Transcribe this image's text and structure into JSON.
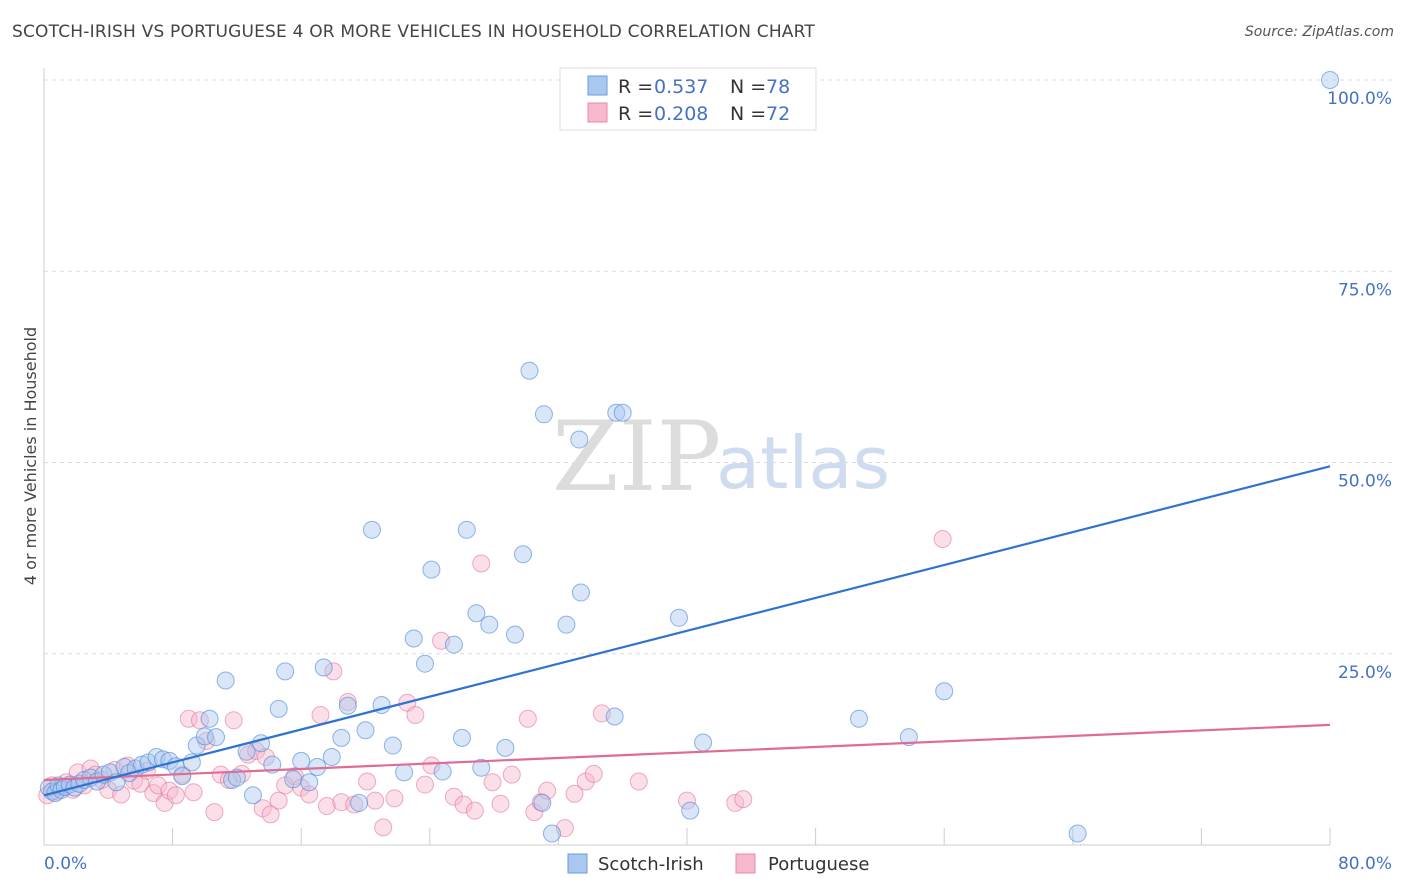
{
  "header": {
    "title": "SCOTCH-IRISH VS PORTUGUESE 4 OR MORE VEHICLES IN HOUSEHOLD CORRELATION CHART",
    "source": "Source: ZipAtlas.com"
  },
  "watermark": {
    "zip": "ZIP",
    "atlas": "atlas"
  },
  "legend": {
    "rows": [
      {
        "r_label": "R =",
        "r_value": "0.537",
        "n_label": "N =",
        "n_value": "78",
        "color": "#a9c8f0"
      },
      {
        "r_label": "R =",
        "r_value": "0.208",
        "n_label": "N =",
        "n_value": "72",
        "color": "#f7b8cc"
      }
    ]
  },
  "bottom_legend": {
    "series1": "Scotch-Irish",
    "series2": "Portuguese"
  },
  "chart_data": {
    "type": "scatter",
    "title": "SCOTCH-IRISH VS PORTUGUESE 4 OR MORE VEHICLES IN HOUSEHOLD CORRELATION CHART",
    "xlabel": "",
    "ylabel": "4 or more Vehicles in Household",
    "xlim": [
      0,
      80
    ],
    "ylim": [
      0,
      100
    ],
    "x_tick_labels": [
      "0.0%",
      "80.0%"
    ],
    "y_ticks": [
      25,
      50,
      75,
      100
    ],
    "y_tick_labels": [
      "25.0%",
      "50.0%",
      "75.0%",
      "100.0%"
    ],
    "grid": true,
    "legend_position": "top-center",
    "series": [
      {
        "name": "Scotch-Irish",
        "color": "#4a86d8",
        "fill": "#a9c8f0",
        "r": 0.537,
        "n": 78,
        "trend": {
          "x": [
            0,
            80
          ],
          "y": [
            6.5,
            49.5
          ]
        },
        "points": [
          [
            0.3,
            7.5
          ],
          [
            0.5,
            7.0
          ],
          [
            0.7,
            6.8
          ],
          [
            0.9,
            7.8
          ],
          [
            1.1,
            7.2
          ],
          [
            1.3,
            7.6
          ],
          [
            1.6,
            7.9
          ],
          [
            1.9,
            7.5
          ],
          [
            2.2,
            8.0
          ],
          [
            2.5,
            8.5
          ],
          [
            2.9,
            8.8
          ],
          [
            3.3,
            8.3
          ],
          [
            3.7,
            9.2
          ],
          [
            4.1,
            9.5
          ],
          [
            4.5,
            8.2
          ],
          [
            5.0,
            10.2
          ],
          [
            5.3,
            9.4
          ],
          [
            5.7,
            10.0
          ],
          [
            6.1,
            10.5
          ],
          [
            6.5,
            10.8
          ],
          [
            7.0,
            11.5
          ],
          [
            7.4,
            11.2
          ],
          [
            7.8,
            11.0
          ],
          [
            8.2,
            10.3
          ],
          [
            8.6,
            9.0
          ],
          [
            9.2,
            10.8
          ],
          [
            9.5,
            13.0
          ],
          [
            10.0,
            14.2
          ],
          [
            10.3,
            16.5
          ],
          [
            10.7,
            14.1
          ],
          [
            11.3,
            21.5
          ],
          [
            11.7,
            8.5
          ],
          [
            12.0,
            8.8
          ],
          [
            12.6,
            12.2
          ],
          [
            13.0,
            6.5
          ],
          [
            13.5,
            13.3
          ],
          [
            14.2,
            10.5
          ],
          [
            14.6,
            17.8
          ],
          [
            15.0,
            22.7
          ],
          [
            15.5,
            8.6
          ],
          [
            16.0,
            11.0
          ],
          [
            16.5,
            8.2
          ],
          [
            17.0,
            10.2
          ],
          [
            17.4,
            23.2
          ],
          [
            17.9,
            11.5
          ],
          [
            18.5,
            14.0
          ],
          [
            18.9,
            18.2
          ],
          [
            19.6,
            5.5
          ],
          [
            20.0,
            15.0
          ],
          [
            20.4,
            41.2
          ],
          [
            21.0,
            18.3
          ],
          [
            21.7,
            13.0
          ],
          [
            22.4,
            9.5
          ],
          [
            23.0,
            27.0
          ],
          [
            23.7,
            23.7
          ],
          [
            24.1,
            36.0
          ],
          [
            24.8,
            9.6
          ],
          [
            25.5,
            26.2
          ],
          [
            26.0,
            14.0
          ],
          [
            26.3,
            41.2
          ],
          [
            26.9,
            30.3
          ],
          [
            27.2,
            10.1
          ],
          [
            27.7,
            28.8
          ],
          [
            28.7,
            12.7
          ],
          [
            29.3,
            27.5
          ],
          [
            29.8,
            38.0
          ],
          [
            30.2,
            62.0
          ],
          [
            31.0,
            5.5
          ],
          [
            31.1,
            56.3
          ],
          [
            31.6,
            1.5
          ],
          [
            32.5,
            28.8
          ],
          [
            33.3,
            53.0
          ],
          [
            33.4,
            33.0
          ],
          [
            35.6,
            56.5
          ],
          [
            35.5,
            16.8
          ],
          [
            36.0,
            56.5
          ],
          [
            39.5,
            29.7
          ],
          [
            40.2,
            4.5
          ],
          [
            41.0,
            13.4
          ],
          [
            50.7,
            16.5
          ],
          [
            53.8,
            14.1
          ],
          [
            56.0,
            20.1
          ],
          [
            64.3,
            1.5
          ],
          [
            80.0,
            100.0
          ]
        ]
      },
      {
        "name": "Portuguese",
        "color": "#e06c96",
        "fill": "#f7b8cc",
        "r": 0.208,
        "n": 72,
        "trend": {
          "x": [
            0,
            80
          ],
          "y": [
            8.5,
            15.7
          ]
        },
        "points": [
          [
            0.2,
            6.5
          ],
          [
            0.5,
            7.8
          ],
          [
            0.8,
            7.0
          ],
          [
            1.1,
            7.5
          ],
          [
            1.4,
            8.2
          ],
          [
            1.8,
            7.2
          ],
          [
            2.1,
            9.5
          ],
          [
            2.5,
            7.8
          ],
          [
            2.9,
            10.0
          ],
          [
            3.2,
            9.2
          ],
          [
            3.6,
            8.5
          ],
          [
            4.0,
            7.2
          ],
          [
            4.4,
            9.8
          ],
          [
            4.8,
            6.6
          ],
          [
            5.2,
            10.4
          ],
          [
            5.6,
            8.4
          ],
          [
            6.0,
            8.0
          ],
          [
            6.4,
            9.7
          ],
          [
            6.8,
            6.8
          ],
          [
            7.1,
            7.8
          ],
          [
            7.5,
            5.5
          ],
          [
            7.8,
            7.1
          ],
          [
            8.2,
            6.5
          ],
          [
            8.6,
            9.2
          ],
          [
            9.0,
            16.5
          ],
          [
            9.3,
            6.9
          ],
          [
            9.7,
            16.3
          ],
          [
            10.1,
            13.6
          ],
          [
            10.6,
            4.3
          ],
          [
            11.0,
            9.2
          ],
          [
            11.5,
            8.5
          ],
          [
            11.8,
            16.3
          ],
          [
            12.3,
            9.3
          ],
          [
            12.7,
            11.8
          ],
          [
            13.2,
            12.3
          ],
          [
            13.6,
            4.8
          ],
          [
            13.8,
            11.5
          ],
          [
            14.1,
            4.0
          ],
          [
            14.6,
            5.8
          ],
          [
            15.0,
            7.8
          ],
          [
            15.6,
            9.0
          ],
          [
            16.0,
            7.5
          ],
          [
            16.5,
            6.6
          ],
          [
            17.2,
            17.0
          ],
          [
            17.6,
            5.1
          ],
          [
            18.0,
            22.7
          ],
          [
            18.5,
            5.6
          ],
          [
            18.9,
            18.7
          ],
          [
            19.3,
            5.3
          ],
          [
            20.1,
            8.3
          ],
          [
            20.6,
            5.8
          ],
          [
            21.1,
            2.3
          ],
          [
            21.8,
            6.1
          ],
          [
            22.6,
            18.6
          ],
          [
            23.1,
            17.0
          ],
          [
            23.7,
            7.9
          ],
          [
            24.1,
            10.4
          ],
          [
            24.7,
            26.7
          ],
          [
            25.5,
            6.3
          ],
          [
            26.1,
            5.3
          ],
          [
            26.8,
            4.5
          ],
          [
            27.2,
            36.8
          ],
          [
            27.9,
            8.2
          ],
          [
            28.4,
            5.4
          ],
          [
            29.1,
            9.2
          ],
          [
            30.1,
            16.5
          ],
          [
            30.5,
            4.3
          ],
          [
            30.9,
            5.6
          ],
          [
            31.3,
            7.1
          ],
          [
            32.4,
            2.2
          ],
          [
            33.0,
            6.7
          ],
          [
            33.7,
            8.3
          ],
          [
            34.2,
            9.3
          ],
          [
            34.7,
            17.2
          ],
          [
            37.0,
            8.3
          ],
          [
            40.0,
            5.8
          ],
          [
            43.0,
            5.5
          ],
          [
            43.5,
            6.0
          ],
          [
            55.9,
            40.0
          ]
        ]
      }
    ]
  }
}
